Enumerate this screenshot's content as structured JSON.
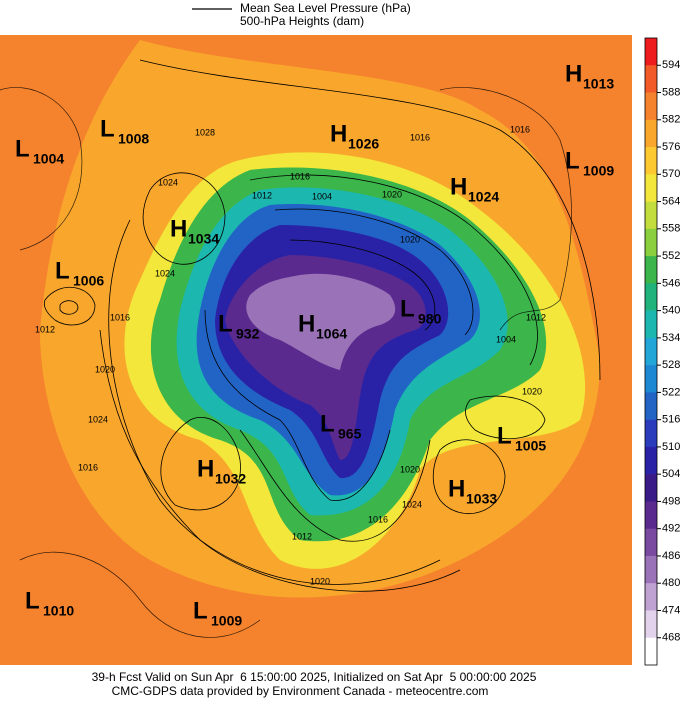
{
  "legend": [
    "Mean Sea Level Pressure (hPa)",
    "500-hPa Heights (dam)"
  ],
  "colorbar": {
    "ticks": [
      594,
      588,
      582,
      576,
      570,
      564,
      558,
      552,
      546,
      540,
      534,
      528,
      522,
      516,
      510,
      504,
      498,
      492,
      486,
      480,
      474,
      468
    ],
    "colors": [
      "#ee1c1c",
      "#f25a28",
      "#f5822c",
      "#f9a62c",
      "#fcc930",
      "#f2e73a",
      "#c4dd3e",
      "#8ccf3e",
      "#3cb54a",
      "#22b27c",
      "#1cb8b0",
      "#22a6d8",
      "#1c88d4",
      "#2264c6",
      "#2a3cbc",
      "#2a22a6",
      "#3a1a86",
      "#5a2a8e",
      "#7a4aa0",
      "#9a72b8",
      "#c0a2d2",
      "#e2d2ec",
      "#ffffff"
    ]
  },
  "centers": [
    {
      "type": "H",
      "value": "1013"
    },
    {
      "type": "L",
      "value": "1008"
    },
    {
      "type": "L",
      "value": "1004"
    },
    {
      "type": "H",
      "value": "1026"
    },
    {
      "type": "H",
      "value": "1024"
    },
    {
      "type": "L",
      "value": "1009"
    },
    {
      "type": "H",
      "value": "1034"
    },
    {
      "type": "L",
      "value": "1006"
    },
    {
      "type": "L",
      "value": "932"
    },
    {
      "type": "H",
      "value": "1064"
    },
    {
      "type": "L",
      "value": "980"
    },
    {
      "type": "L",
      "value": "965"
    },
    {
      "type": "L",
      "value": "1005"
    },
    {
      "type": "H",
      "value": "1032"
    },
    {
      "type": "H",
      "value": "1033"
    },
    {
      "type": "L",
      "value": "1010"
    },
    {
      "type": "L",
      "value": "1009"
    }
  ],
  "contour_labels": [
    "1028",
    "1016",
    "1012",
    "1020",
    "1004",
    "1016",
    "1024",
    "1012",
    "1016",
    "1020",
    "1024",
    "1016",
    "1020",
    "1012",
    "1004",
    "1016",
    "1020",
    "1024",
    "1016",
    "1012",
    "1020",
    "1024",
    "1020"
  ],
  "footer": [
    "39-h Fcst Valid on Sun Apr  6 15:00:00 2025, Initialized on Sat Apr  5 00:00:00 2025",
    "CMC-GDPS data provided by Environment Canada - meteocentre.com"
  ]
}
